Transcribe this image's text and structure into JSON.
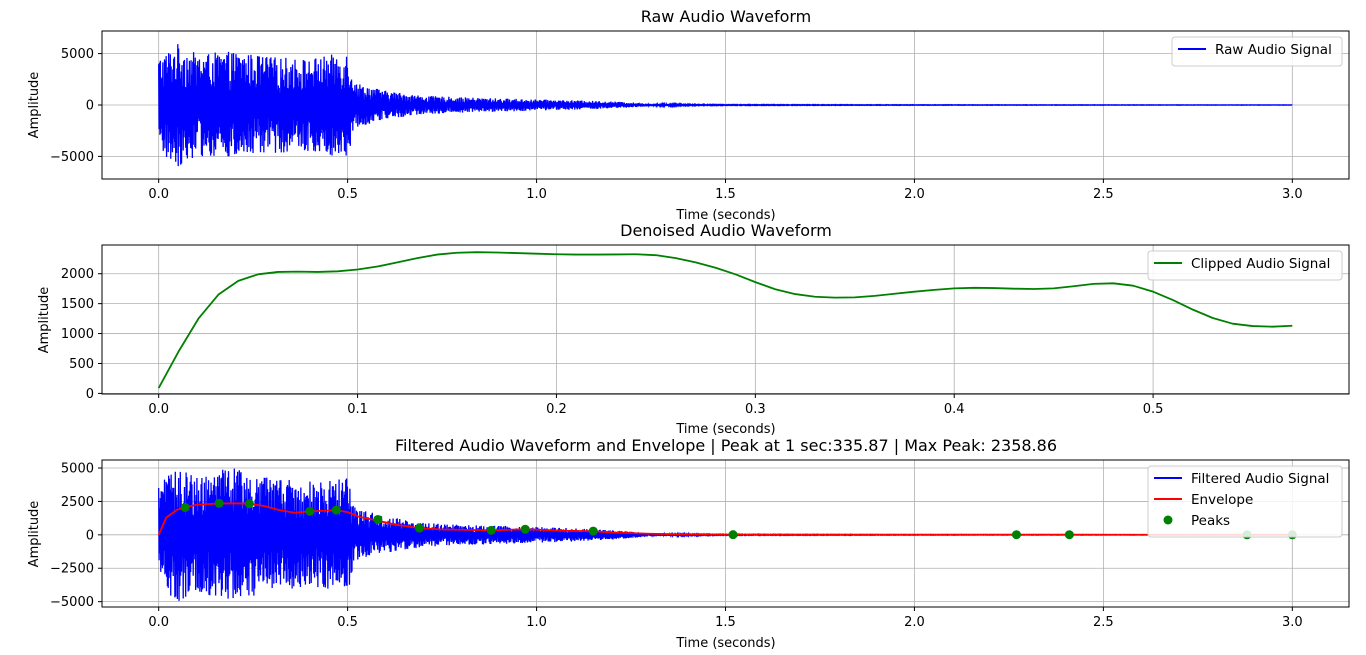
{
  "chart_data": [
    {
      "type": "line",
      "title": "Raw Audio Waveform",
      "xlabel": "Time (seconds)",
      "ylabel": "Amplitude",
      "xlim": [
        -0.15,
        3.15
      ],
      "ylim": [
        -7200,
        7200
      ],
      "xticks": [
        0.0,
        0.5,
        1.0,
        1.5,
        2.0,
        2.5,
        3.0
      ],
      "xtick_labels": [
        "0.0",
        "0.5",
        "1.0",
        "1.5",
        "2.0",
        "2.5",
        "3.0"
      ],
      "yticks": [
        -5000,
        0,
        5000
      ],
      "ytick_labels": [
        "−5000",
        "0",
        "5000"
      ],
      "grid": true,
      "legend_position": "top-right",
      "series": [
        {
          "name": "Raw Audio Signal",
          "color": "#0000ff",
          "kind": "oscillation",
          "env_t": [
            0.0,
            0.05,
            0.1,
            0.2,
            0.3,
            0.4,
            0.5,
            0.52,
            0.6,
            0.7,
            0.8,
            0.9,
            1.0,
            1.1,
            1.2,
            1.3,
            1.4,
            1.5,
            2.0,
            3.0
          ],
          "env_amp": [
            4700,
            6000,
            5000,
            5200,
            4700,
            4500,
            5200,
            2200,
            1400,
            900,
            750,
            650,
            550,
            450,
            350,
            140,
            60,
            40,
            25,
            15
          ]
        }
      ]
    },
    {
      "type": "line",
      "title": "Denoised Audio Waveform",
      "xlabel": "Time (seconds)",
      "ylabel": "Amplitude",
      "xlim": [
        -0.0285,
        0.5985
      ],
      "ylim": [
        -10,
        2480
      ],
      "xticks": [
        0.0,
        0.1,
        0.2,
        0.3,
        0.4,
        0.5
      ],
      "xtick_labels": [
        "0.0",
        "0.1",
        "0.2",
        "0.3",
        "0.4",
        "0.5"
      ],
      "yticks": [
        0,
        500,
        1000,
        1500,
        2000
      ],
      "ytick_labels": [
        "0",
        "500",
        "1000",
        "1500",
        "2000"
      ],
      "grid": true,
      "legend_position": "top-right",
      "series": [
        {
          "name": "Clipped Audio Signal",
          "color": "#008000",
          "x": [
            0.0,
            0.01,
            0.02,
            0.03,
            0.04,
            0.05,
            0.06,
            0.07,
            0.08,
            0.09,
            0.1,
            0.11,
            0.12,
            0.13,
            0.14,
            0.15,
            0.16,
            0.17,
            0.18,
            0.19,
            0.2,
            0.21,
            0.22,
            0.23,
            0.24,
            0.25,
            0.26,
            0.27,
            0.28,
            0.29,
            0.3,
            0.31,
            0.32,
            0.33,
            0.34,
            0.35,
            0.36,
            0.37,
            0.38,
            0.39,
            0.4,
            0.41,
            0.42,
            0.43,
            0.44,
            0.45,
            0.46,
            0.47,
            0.48,
            0.49,
            0.5,
            0.51,
            0.52,
            0.53,
            0.54,
            0.55,
            0.56,
            0.57
          ],
          "y": [
            90,
            700,
            1250,
            1650,
            1880,
            1990,
            2030,
            2035,
            2030,
            2040,
            2070,
            2120,
            2190,
            2260,
            2320,
            2350,
            2360,
            2355,
            2345,
            2335,
            2325,
            2320,
            2320,
            2322,
            2325,
            2310,
            2260,
            2190,
            2100,
            1990,
            1860,
            1740,
            1660,
            1615,
            1600,
            1605,
            1630,
            1665,
            1700,
            1730,
            1755,
            1765,
            1760,
            1750,
            1745,
            1755,
            1790,
            1830,
            1840,
            1800,
            1700,
            1560,
            1400,
            1260,
            1165,
            1125,
            1115,
            1130
          ]
        }
      ]
    },
    {
      "type": "line",
      "title": "Filtered Audio Waveform and Envelope | Peak at 1 sec:335.87 | Max Peak: 2358.86",
      "xlabel": "Time (seconds)",
      "ylabel": "Amplitude",
      "xlim": [
        -0.15,
        3.15
      ],
      "ylim": [
        -5400,
        5600
      ],
      "xticks": [
        0.0,
        0.5,
        1.0,
        1.5,
        2.0,
        2.5,
        3.0
      ],
      "xtick_labels": [
        "0.0",
        "0.5",
        "1.0",
        "1.5",
        "2.0",
        "2.5",
        "3.0"
      ],
      "yticks": [
        -5000,
        -2500,
        0,
        2500,
        5000
      ],
      "ytick_labels": [
        "−5000",
        "−2500",
        "0",
        "2500",
        "5000"
      ],
      "grid": true,
      "legend_position": "top-right",
      "series": [
        {
          "name": "Filtered Audio Signal",
          "color": "#0000ff",
          "kind": "oscillation",
          "env_t": [
            0.0,
            0.05,
            0.1,
            0.2,
            0.3,
            0.4,
            0.5,
            0.52,
            0.6,
            0.7,
            0.8,
            0.9,
            1.0,
            1.1,
            1.2,
            1.3,
            1.4,
            1.5,
            2.0,
            3.0
          ],
          "env_amp": [
            4000,
            5000,
            4600,
            5000,
            4200,
            4000,
            4300,
            2000,
            1400,
            900,
            750,
            700,
            600,
            500,
            350,
            130,
            60,
            35,
            20,
            12
          ]
        },
        {
          "name": "Envelope",
          "color": "#ff0000",
          "x": [
            0.0,
            0.02,
            0.05,
            0.07,
            0.1,
            0.15,
            0.2,
            0.24,
            0.28,
            0.32,
            0.36,
            0.4,
            0.44,
            0.47,
            0.5,
            0.53,
            0.58,
            0.63,
            0.69,
            0.75,
            0.8,
            0.88,
            0.93,
            0.97,
            1.02,
            1.08,
            1.14,
            1.2,
            1.3,
            1.4,
            1.52,
            2.0,
            2.27,
            2.41,
            2.88,
            3.0
          ],
          "y": [
            0,
            1300,
            1900,
            2050,
            2250,
            2330,
            2359,
            2330,
            2150,
            1850,
            1650,
            1760,
            1800,
            1850,
            1700,
            1350,
            1050,
            750,
            500,
            400,
            380,
            336,
            380,
            420,
            360,
            300,
            280,
            180,
            80,
            30,
            15,
            10,
            10,
            10,
            5,
            5
          ]
        },
        {
          "name": "Peaks",
          "color": "#008000",
          "kind": "scatter",
          "x": [
            0.07,
            0.16,
            0.24,
            0.4,
            0.47,
            0.58,
            0.69,
            0.88,
            0.97,
            1.15,
            1.52,
            2.27,
            2.41,
            2.88,
            3.0
          ],
          "y": [
            2050,
            2359,
            2330,
            1760,
            1850,
            1150,
            500,
            336,
            420,
            280,
            15,
            10,
            10,
            5,
            5
          ]
        }
      ]
    }
  ]
}
